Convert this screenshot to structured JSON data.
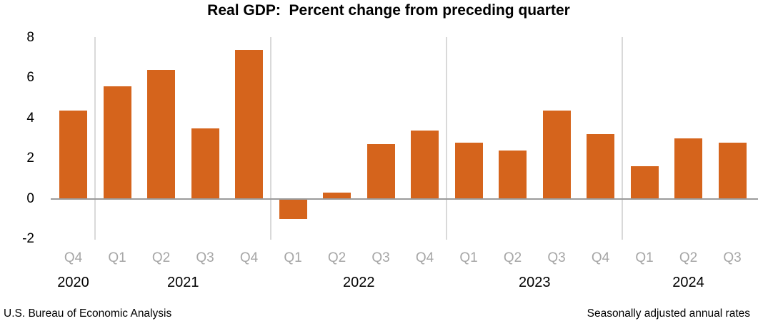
{
  "chart_data": {
    "type": "bar",
    "title": "Real GDP:  Percent change from preceding quarter",
    "categories": [
      "2020 Q4",
      "2021 Q1",
      "2021 Q2",
      "2021 Q3",
      "2021 Q4",
      "2022 Q1",
      "2022 Q2",
      "2022 Q3",
      "2022 Q4",
      "2023 Q1",
      "2023 Q2",
      "2023 Q3",
      "2023 Q4",
      "2024 Q1",
      "2024 Q2",
      "2024 Q3"
    ],
    "values": [
      4.4,
      5.6,
      6.4,
      3.5,
      7.4,
      -1.0,
      0.3,
      2.7,
      3.4,
      2.8,
      2.4,
      4.4,
      3.2,
      1.6,
      3.0,
      2.8
    ],
    "groups": [
      {
        "year": "2020",
        "quarters": [
          "Q4"
        ],
        "values": [
          4.4
        ]
      },
      {
        "year": "2021",
        "quarters": [
          "Q1",
          "Q2",
          "Q3",
          "Q4"
        ],
        "values": [
          5.6,
          6.4,
          3.5,
          7.4
        ]
      },
      {
        "year": "2022",
        "quarters": [
          "Q1",
          "Q2",
          "Q3",
          "Q4"
        ],
        "values": [
          -1.0,
          0.3,
          2.7,
          3.4
        ]
      },
      {
        "year": "2023",
        "quarters": [
          "Q1",
          "Q2",
          "Q3",
          "Q4"
        ],
        "values": [
          2.8,
          2.4,
          4.4,
          3.2
        ]
      },
      {
        "year": "2024",
        "quarters": [
          "Q1",
          "Q2",
          "Q3"
        ],
        "values": [
          1.6,
          3.0,
          2.8
        ]
      }
    ],
    "yticks": [
      8,
      6,
      4,
      2,
      0,
      -2
    ],
    "ylim": [
      -2,
      8
    ],
    "xlabel": "",
    "ylabel": "",
    "legend": "none",
    "grid": "vertical-year-separators-only",
    "colors": {
      "bar": "#d5641c",
      "quarter_label": "#a6a6a6",
      "year_label": "#000000",
      "axis_line": "#9b9b9b",
      "separator": "#d9d9d9",
      "title": "#000000"
    }
  },
  "footer": {
    "left": "U.S. Bureau of Economic Analysis",
    "right": "Seasonally adjusted annual rates"
  }
}
